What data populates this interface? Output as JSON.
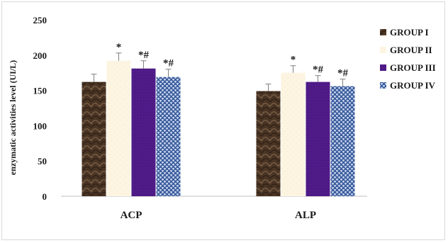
{
  "chart_data": {
    "type": "bar",
    "title": "",
    "xlabel": "",
    "ylabel": "enzymatic activities level (UI/L)",
    "ylim": [
      0,
      250
    ],
    "yticks": [
      0,
      50,
      100,
      150,
      200,
      250
    ],
    "categories": [
      "ACP",
      "ALP"
    ],
    "series": [
      {
        "name": "GROUP I",
        "values": [
          162,
          149
        ],
        "errors": [
          11,
          10
        ],
        "annotations": [
          "",
          ""
        ],
        "pattern": "marble-brown"
      },
      {
        "name": "GROUP II",
        "values": [
          192,
          175
        ],
        "errors": [
          11,
          10
        ],
        "annotations": [
          "*",
          "*"
        ],
        "pattern": "cream"
      },
      {
        "name": "GROUP III",
        "values": [
          181,
          162
        ],
        "errors": [
          11,
          9
        ],
        "annotations": [
          "*#",
          "*#"
        ],
        "pattern": "purple"
      },
      {
        "name": "GROUP IV",
        "values": [
          169,
          156
        ],
        "errors": [
          11,
          10
        ],
        "annotations": [
          "*#",
          "*#"
        ],
        "pattern": "blue-weave"
      }
    ],
    "grid": false,
    "legend_position": "right"
  }
}
